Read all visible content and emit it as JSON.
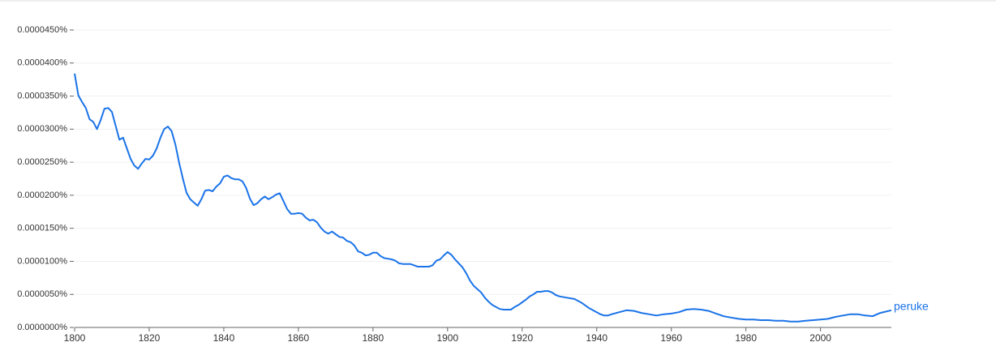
{
  "chart_data": {
    "type": "line",
    "x": [
      1800,
      1801,
      1802,
      1803,
      1804,
      1805,
      1806,
      1807,
      1808,
      1809,
      1810,
      1811,
      1812,
      1813,
      1814,
      1815,
      1816,
      1817,
      1818,
      1819,
      1820,
      1821,
      1822,
      1823,
      1824,
      1825,
      1826,
      1827,
      1828,
      1829,
      1830,
      1831,
      1832,
      1833,
      1834,
      1835,
      1836,
      1837,
      1838,
      1839,
      1840,
      1841,
      1842,
      1843,
      1844,
      1845,
      1846,
      1847,
      1848,
      1849,
      1850,
      1851,
      1852,
      1853,
      1854,
      1855,
      1856,
      1857,
      1858,
      1859,
      1860,
      1861,
      1862,
      1863,
      1864,
      1865,
      1866,
      1867,
      1868,
      1869,
      1870,
      1871,
      1872,
      1873,
      1874,
      1875,
      1876,
      1877,
      1878,
      1879,
      1880,
      1881,
      1882,
      1883,
      1884,
      1885,
      1886,
      1887,
      1888,
      1890,
      1891,
      1892,
      1894,
      1895,
      1896,
      1897,
      1898,
      1899,
      1900,
      1901,
      1902,
      1903,
      1904,
      1905,
      1906,
      1907,
      1908,
      1909,
      1910,
      1911,
      1912,
      1913,
      1914,
      1915,
      1916,
      1917,
      1918,
      1919,
      1920,
      1921,
      1922,
      1923,
      1924,
      1925,
      1926,
      1927,
      1928,
      1929,
      1930,
      1932,
      1934,
      1936,
      1938,
      1940,
      1941,
      1942,
      1943,
      1944,
      1946,
      1948,
      1950,
      1952,
      1954,
      1956,
      1958,
      1960,
      1962,
      1964,
      1966,
      1968,
      1970,
      1972,
      1974,
      1976,
      1978,
      1980,
      1982,
      1984,
      1986,
      1988,
      1990,
      1992,
      1994,
      1996,
      1998,
      2000,
      2002,
      2004,
      2006,
      2008,
      2010,
      2012,
      2014,
      2016,
      2019
    ],
    "series": [
      {
        "name": "peruke",
        "color": "#1a73e8",
        "values": [
          3.84e-05,
          3.51e-05,
          3.41e-05,
          3.32e-05,
          3.15e-05,
          3.11e-05,
          3e-05,
          3.14e-05,
          3.31e-05,
          3.32e-05,
          3.26e-05,
          3.05e-05,
          2.84e-05,
          2.87e-05,
          2.71e-05,
          2.55e-05,
          2.45e-05,
          2.4e-05,
          2.48e-05,
          2.55e-05,
          2.54e-05,
          2.6e-05,
          2.71e-05,
          2.87e-05,
          3e-05,
          3.04e-05,
          2.97e-05,
          2.77e-05,
          2.5e-05,
          2.26e-05,
          2.04e-05,
          1.94e-05,
          1.89e-05,
          1.84e-05,
          1.94e-05,
          2.07e-05,
          2.08e-05,
          2.06e-05,
          2.13e-05,
          2.18e-05,
          2.28e-05,
          2.3e-05,
          2.26e-05,
          2.24e-05,
          2.24e-05,
          2.21e-05,
          2.11e-05,
          1.95e-05,
          1.85e-05,
          1.88e-05,
          1.94e-05,
          1.98e-05,
          1.94e-05,
          1.97e-05,
          2.01e-05,
          2.03e-05,
          1.91e-05,
          1.79e-05,
          1.72e-05,
          1.72e-05,
          1.73e-05,
          1.72e-05,
          1.66e-05,
          1.62e-05,
          1.63e-05,
          1.59e-05,
          1.51e-05,
          1.45e-05,
          1.42e-05,
          1.45e-05,
          1.41e-05,
          1.37e-05,
          1.36e-05,
          1.31e-05,
          1.29e-05,
          1.24e-05,
          1.15e-05,
          1.13e-05,
          1.09e-05,
          1.1e-05,
          1.13e-05,
          1.13e-05,
          1.08e-05,
          1.05e-05,
          1.04e-05,
          1.03e-05,
          1.01e-05,
          9.7e-06,
          9.6e-06,
          9.6e-06,
          9.4e-06,
          9.2e-06,
          9.2e-06,
          9.2e-06,
          9.4e-06,
          1.01e-05,
          1.03e-05,
          1.09e-05,
          1.14e-05,
          1.1e-05,
          1.03e-05,
          9.7e-06,
          9.1e-06,
          8.2e-06,
          7.1e-06,
          6.3e-06,
          5.8e-06,
          5.3e-06,
          4.5e-06,
          3.9e-06,
          3.4e-06,
          3.1e-06,
          2.8e-06,
          2.7e-06,
          2.7e-06,
          2.7e-06,
          3.1e-06,
          3.4e-06,
          3.8e-06,
          4.2e-06,
          4.7e-06,
          5e-06,
          5.4e-06,
          5.4e-06,
          5.5e-06,
          5.5e-06,
          5.3e-06,
          4.9e-06,
          4.7e-06,
          4.5e-06,
          4.3e-06,
          3.7e-06,
          2.9e-06,
          2.3e-06,
          2e-06,
          1.8e-06,
          1.8e-06,
          2e-06,
          2.3e-06,
          2.6e-06,
          2.5e-06,
          2.2e-06,
          2e-06,
          1.8e-06,
          2e-06,
          2.1e-06,
          2.3e-06,
          2.7e-06,
          2.8e-06,
          2.7e-06,
          2.5e-06,
          2.1e-06,
          1.7e-06,
          1.5e-06,
          1.3e-06,
          1.2e-06,
          1.2e-06,
          1.1e-06,
          1.1e-06,
          1e-06,
          1e-06,
          9e-07,
          9e-07,
          1e-06,
          1.1e-06,
          1.2e-06,
          1.3e-06,
          1.6e-06,
          1.8e-06,
          2e-06,
          2e-06,
          1.8e-06,
          1.7e-06,
          2.2e-06,
          2.6e-06
        ]
      }
    ],
    "xlim": [
      1800,
      2019
    ],
    "xticks": [
      1800,
      1820,
      1840,
      1860,
      1880,
      1900,
      1920,
      1940,
      1960,
      1980,
      2000
    ],
    "ylim": [
      0,
      4.5e-05
    ],
    "yticks": [
      {
        "value": 0,
        "label": "0.0000000%"
      },
      {
        "value": 5e-06,
        "label": "0.0000050%"
      },
      {
        "value": 1e-05,
        "label": "0.0000100%"
      },
      {
        "value": 1.5e-05,
        "label": "0.0000150%"
      },
      {
        "value": 2e-05,
        "label": "0.0000200%"
      },
      {
        "value": 2.5e-05,
        "label": "0.0000250%"
      },
      {
        "value": 3e-05,
        "label": "0.0000300%"
      },
      {
        "value": 3.5e-05,
        "label": "0.0000350%"
      },
      {
        "value": 4e-05,
        "label": "0.0000400%"
      },
      {
        "value": 4.5e-05,
        "label": "0.0000450%"
      }
    ],
    "grid": true
  }
}
